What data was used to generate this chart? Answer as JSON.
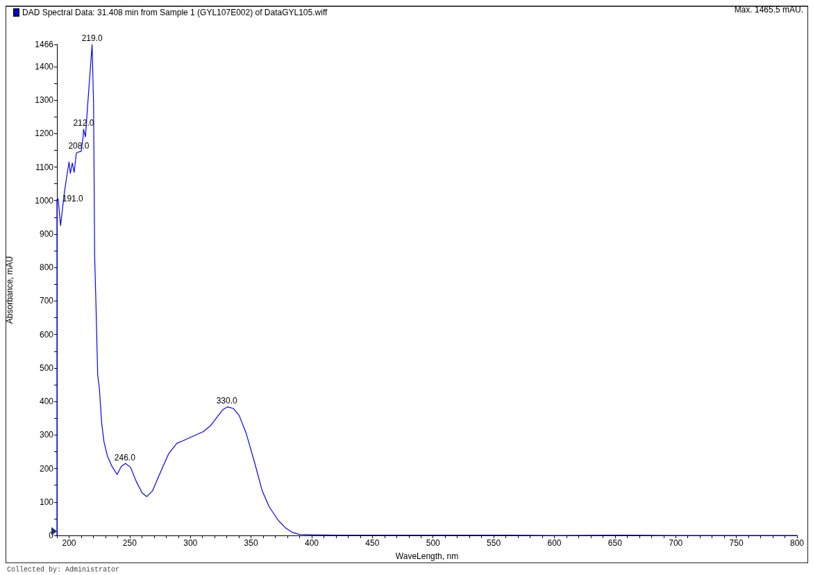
{
  "chart_data": {
    "type": "line",
    "series": [
      {
        "name": "DAD Spectral Data: 31.408 min from Sample 1 (GYL107E002) of DataGYL105.wiff",
        "color": "#0000ff",
        "x": [
          190,
          190,
          191,
          193,
          196,
          198,
          200,
          201,
          202.7,
          204.2,
          206,
          208,
          210,
          211.6,
          212,
          213.5,
          215.4,
          219,
          220.2,
          221.1,
          222.1,
          223.6,
          225,
          226.9,
          228.8,
          231.6,
          235.4,
          239.6,
          243,
          246.5,
          250.7,
          255.4,
          260.2,
          264,
          268.8,
          275.4,
          282.1,
          288.8,
          293.5,
          302.1,
          310.7,
          316.4,
          323,
          326.9,
          330.7,
          335.4,
          340.2,
          345.9,
          353.5,
          359.2,
          365,
          372.6,
          378.3,
          384,
          390,
          400,
          420,
          500,
          560,
          600,
          655,
          700,
          800
        ],
        "values": [
          0,
          1003,
          1005,
          925,
          1020,
          1070,
          1115,
          1081,
          1112,
          1084,
          1142,
          1145,
          1147,
          1191,
          1213,
          1190,
          1288,
          1465.5,
          1288,
          832,
          700,
          479,
          438,
          334,
          279,
          237,
          206,
          182,
          206,
          215,
          203,
          161,
          127,
          116,
          133,
          189,
          244,
          275,
          282,
          296,
          310,
          327,
          358,
          376,
          384,
          379,
          358,
          306,
          210,
          133,
          85,
          44,
          23,
          9,
          3,
          2,
          1,
          1,
          1,
          0,
          1,
          0,
          0
        ]
      }
    ],
    "xlabel": "WaveLength, nm",
    "ylabel": "Absorbance, mAU",
    "xlim": [
      190,
      800
    ],
    "ylim": [
      0,
      1466
    ],
    "xticks": [
      {
        "value": 190,
        "label": null
      },
      200,
      {
        "value": 210,
        "label": null
      },
      {
        "value": 220,
        "label": null
      },
      {
        "value": 230,
        "label": null
      },
      {
        "value": 240,
        "label": null
      },
      250,
      {
        "value": 260,
        "label": null
      },
      {
        "value": 270,
        "label": null
      },
      {
        "value": 280,
        "label": null
      },
      {
        "value": 290,
        "label": null
      },
      300,
      {
        "value": 310,
        "label": null
      },
      {
        "value": 320,
        "label": null
      },
      {
        "value": 330,
        "label": null
      },
      {
        "value": 340,
        "label": null
      },
      350,
      {
        "value": 360,
        "label": null
      },
      {
        "value": 370,
        "label": null
      },
      {
        "value": 380,
        "label": null
      },
      {
        "value": 390,
        "label": null
      },
      400,
      {
        "value": 410,
        "label": null
      },
      {
        "value": 420,
        "label": null
      },
      {
        "value": 430,
        "label": null
      },
      {
        "value": 440,
        "label": null
      },
      450,
      {
        "value": 460,
        "label": null
      },
      {
        "value": 470,
        "label": null
      },
      {
        "value": 480,
        "label": null
      },
      {
        "value": 490,
        "label": null
      },
      500,
      {
        "value": 510,
        "label": null
      },
      {
        "value": 520,
        "label": null
      },
      {
        "value": 530,
        "label": null
      },
      {
        "value": 540,
        "label": null
      },
      550,
      {
        "value": 560,
        "label": null
      },
      {
        "value": 570,
        "label": null
      },
      {
        "value": 580,
        "label": null
      },
      {
        "value": 590,
        "label": null
      },
      600,
      {
        "value": 610,
        "label": null
      },
      {
        "value": 620,
        "label": null
      },
      {
        "value": 630,
        "label": null
      },
      {
        "value": 640,
        "label": null
      },
      650,
      {
        "value": 660,
        "label": null
      },
      {
        "value": 670,
        "label": null
      },
      {
        "value": 680,
        "label": null
      },
      {
        "value": 690,
        "label": null
      },
      700,
      {
        "value": 710,
        "label": null
      },
      {
        "value": 720,
        "label": null
      },
      {
        "value": 730,
        "label": null
      },
      {
        "value": 740,
        "label": null
      },
      750,
      {
        "value": 760,
        "label": null
      },
      {
        "value": 770,
        "label": null
      },
      {
        "value": 780,
        "label": null
      },
      {
        "value": 790,
        "label": null
      },
      800
    ],
    "yticks": [
      0,
      {
        "value": 50,
        "label": null
      },
      100,
      {
        "value": 150,
        "label": null
      },
      200,
      {
        "value": 250,
        "label": null
      },
      300,
      {
        "value": 350,
        "label": null
      },
      400,
      {
        "value": 450,
        "label": null
      },
      500,
      {
        "value": 550,
        "label": null
      },
      600,
      {
        "value": 650,
        "label": null
      },
      700,
      {
        "value": 750,
        "label": null
      },
      800,
      {
        "value": 850,
        "label": null
      },
      900,
      {
        "value": 950,
        "label": null
      },
      1000,
      {
        "value": 1050,
        "label": null
      },
      1100,
      {
        "value": 1150,
        "label": null
      },
      1200,
      {
        "value": 1250,
        "label": null
      },
      1300,
      {
        "value": 1350,
        "label": null
      },
      1400,
      1466
    ],
    "annotations": [
      {
        "text": "219.0",
        "x": 219,
        "y": 1465.5
      },
      {
        "text": "212.0",
        "x": 212,
        "y": 1213
      },
      {
        "text": "208.0",
        "x": 208,
        "y": 1145
      },
      {
        "text": "191.0",
        "x": 191,
        "y": 1005
      },
      {
        "text": "246.0",
        "x": 246,
        "y": 214
      },
      {
        "text": "330.0",
        "x": 330,
        "y": 383
      },
      "Max. 1465.5 mAU.",
      "Collected by: Administrator"
    ],
    "legend": "top left",
    "grid": false,
    "marker": "none",
    "line_style": "solid"
  }
}
